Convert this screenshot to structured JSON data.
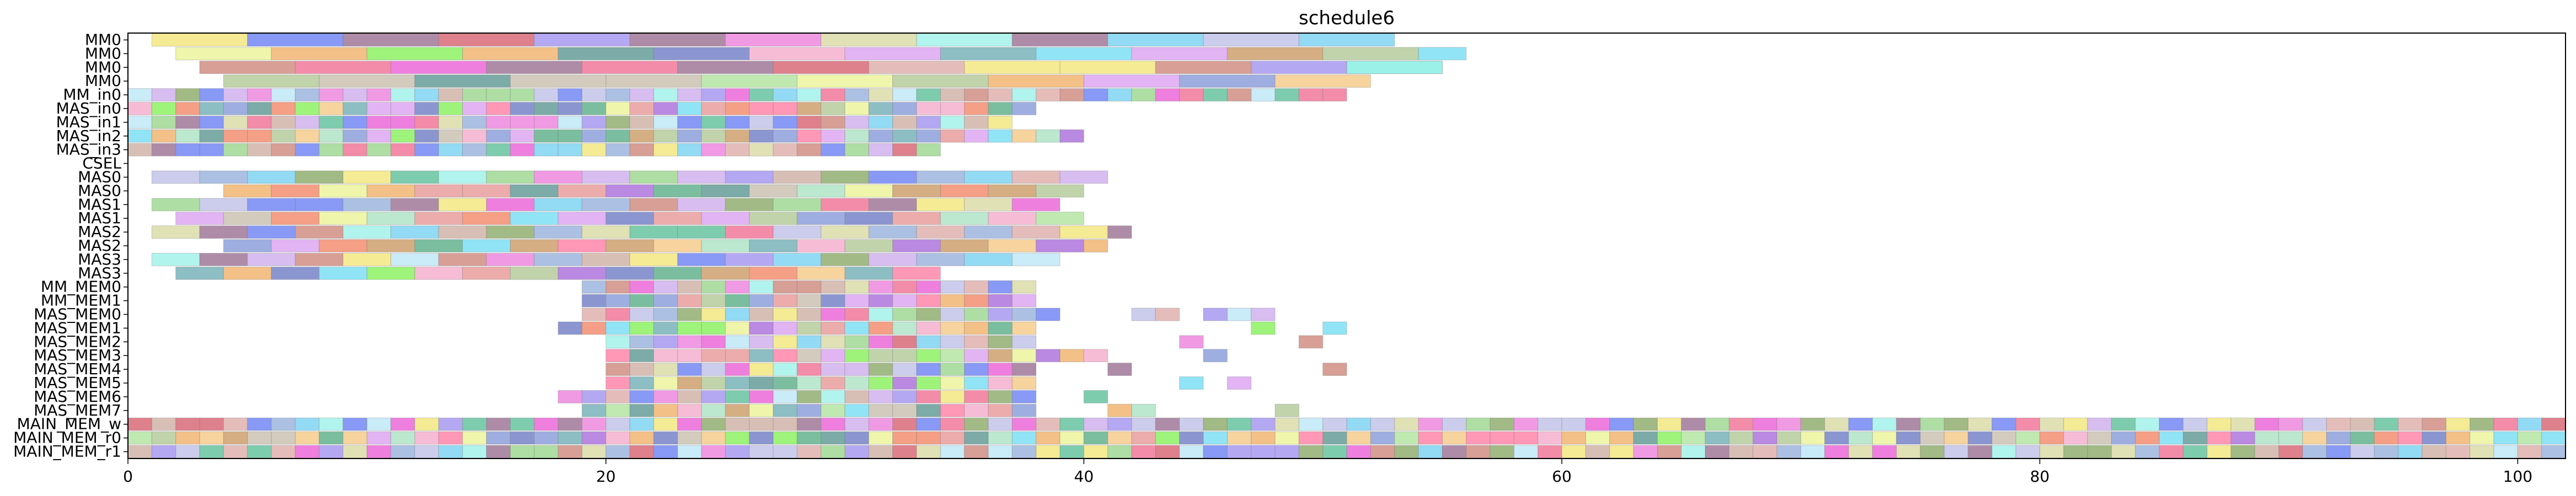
{
  "chart_data": {
    "type": "gantt",
    "title": "schedule6",
    "xlabel": "",
    "ylabel": "",
    "xlim": [
      0,
      102
    ],
    "x_ticks": [
      0,
      20,
      40,
      60,
      80,
      100
    ],
    "grid": false,
    "legend": "none",
    "rows": [
      "MM0",
      "MM0",
      "MM0",
      "MM0",
      "MM_in0",
      "MAS_in0",
      "MAS_in1",
      "MAS_in2",
      "MAS_in3",
      "CSEL",
      "MAS0",
      "MAS0",
      "MAS1",
      "MAS1",
      "MAS2",
      "MAS2",
      "MAS3",
      "MAS3",
      "MM_MEM0",
      "MM_MEM1",
      "MAS_MEM0",
      "MAS_MEM1",
      "MAS_MEM2",
      "MAS_MEM3",
      "MAS_MEM4",
      "MAS_MEM5",
      "MAS_MEM6",
      "MAS_MEM7",
      "MAIN_MEM_w",
      "MAIN_MEM_r0",
      "MAIN_MEM_r1"
    ],
    "segments": [
      {
        "row": 0,
        "spans": [
          [
            1,
            53,
            4
          ]
        ]
      },
      {
        "row": 1,
        "spans": [
          [
            2,
            56,
            4
          ]
        ]
      },
      {
        "row": 2,
        "spans": [
          [
            3,
            55,
            4
          ],
          [
            51,
            55,
            4
          ]
        ]
      },
      {
        "row": 3,
        "spans": [
          [
            4,
            52,
            4
          ]
        ]
      },
      {
        "row": 4,
        "spans": [
          [
            0,
            51,
            1
          ]
        ]
      },
      {
        "row": 5,
        "spans": [
          [
            0,
            38,
            1
          ]
        ]
      },
      {
        "row": 6,
        "spans": [
          [
            0,
            37,
            1
          ]
        ]
      },
      {
        "row": 7,
        "spans": [
          [
            0,
            40,
            1
          ]
        ]
      },
      {
        "row": 8,
        "spans": [
          [
            0,
            34,
            1
          ]
        ]
      },
      {
        "row": 10,
        "spans": [
          [
            1,
            41,
            2
          ]
        ]
      },
      {
        "row": 11,
        "spans": [
          [
            4,
            40,
            2
          ]
        ]
      },
      {
        "row": 12,
        "spans": [
          [
            1,
            39,
            2
          ]
        ]
      },
      {
        "row": 13,
        "spans": [
          [
            2,
            40,
            2
          ]
        ]
      },
      {
        "row": 14,
        "spans": [
          [
            1,
            42,
            2
          ]
        ]
      },
      {
        "row": 15,
        "spans": [
          [
            4,
            41,
            2
          ]
        ]
      },
      {
        "row": 16,
        "spans": [
          [
            1,
            39,
            2
          ]
        ]
      },
      {
        "row": 17,
        "spans": [
          [
            2,
            34,
            2
          ]
        ]
      },
      {
        "row": 18,
        "spans": [
          [
            19,
            38,
            1
          ]
        ]
      },
      {
        "row": 19,
        "spans": [
          [
            19,
            38,
            1
          ]
        ]
      },
      {
        "row": 20,
        "spans": [
          [
            19,
            39,
            1
          ],
          [
            42,
            43,
            1
          ],
          [
            43,
            44,
            1
          ],
          [
            45,
            46,
            1
          ],
          [
            46,
            47,
            1
          ],
          [
            47,
            48,
            1
          ]
        ]
      },
      {
        "row": 21,
        "spans": [
          [
            18,
            38,
            1
          ],
          [
            47,
            48,
            1
          ],
          [
            50,
            51,
            1
          ]
        ]
      },
      {
        "row": 22,
        "spans": [
          [
            20,
            38,
            1
          ],
          [
            44,
            45,
            1
          ],
          [
            49,
            50,
            1
          ]
        ]
      },
      {
        "row": 23,
        "spans": [
          [
            20,
            41,
            1
          ],
          [
            45,
            46,
            1
          ]
        ]
      },
      {
        "row": 24,
        "spans": [
          [
            20,
            38,
            1
          ],
          [
            41,
            42,
            1
          ],
          [
            50,
            51,
            1
          ]
        ]
      },
      {
        "row": 25,
        "spans": [
          [
            20,
            38,
            1
          ],
          [
            44,
            45,
            1
          ],
          [
            46,
            47,
            1
          ]
        ]
      },
      {
        "row": 26,
        "spans": [
          [
            18,
            38,
            1
          ],
          [
            40,
            41,
            1
          ]
        ]
      },
      {
        "row": 27,
        "spans": [
          [
            19,
            38,
            1
          ],
          [
            41,
            42,
            1
          ],
          [
            42,
            43,
            1
          ],
          [
            48,
            49,
            1
          ]
        ]
      },
      {
        "row": 28,
        "spans": [
          [
            0,
            102,
            1
          ]
        ]
      },
      {
        "row": 29,
        "spans": [
          [
            0,
            102,
            1
          ]
        ]
      },
      {
        "row": 30,
        "spans": [
          [
            0,
            102,
            1
          ]
        ]
      }
    ]
  }
}
